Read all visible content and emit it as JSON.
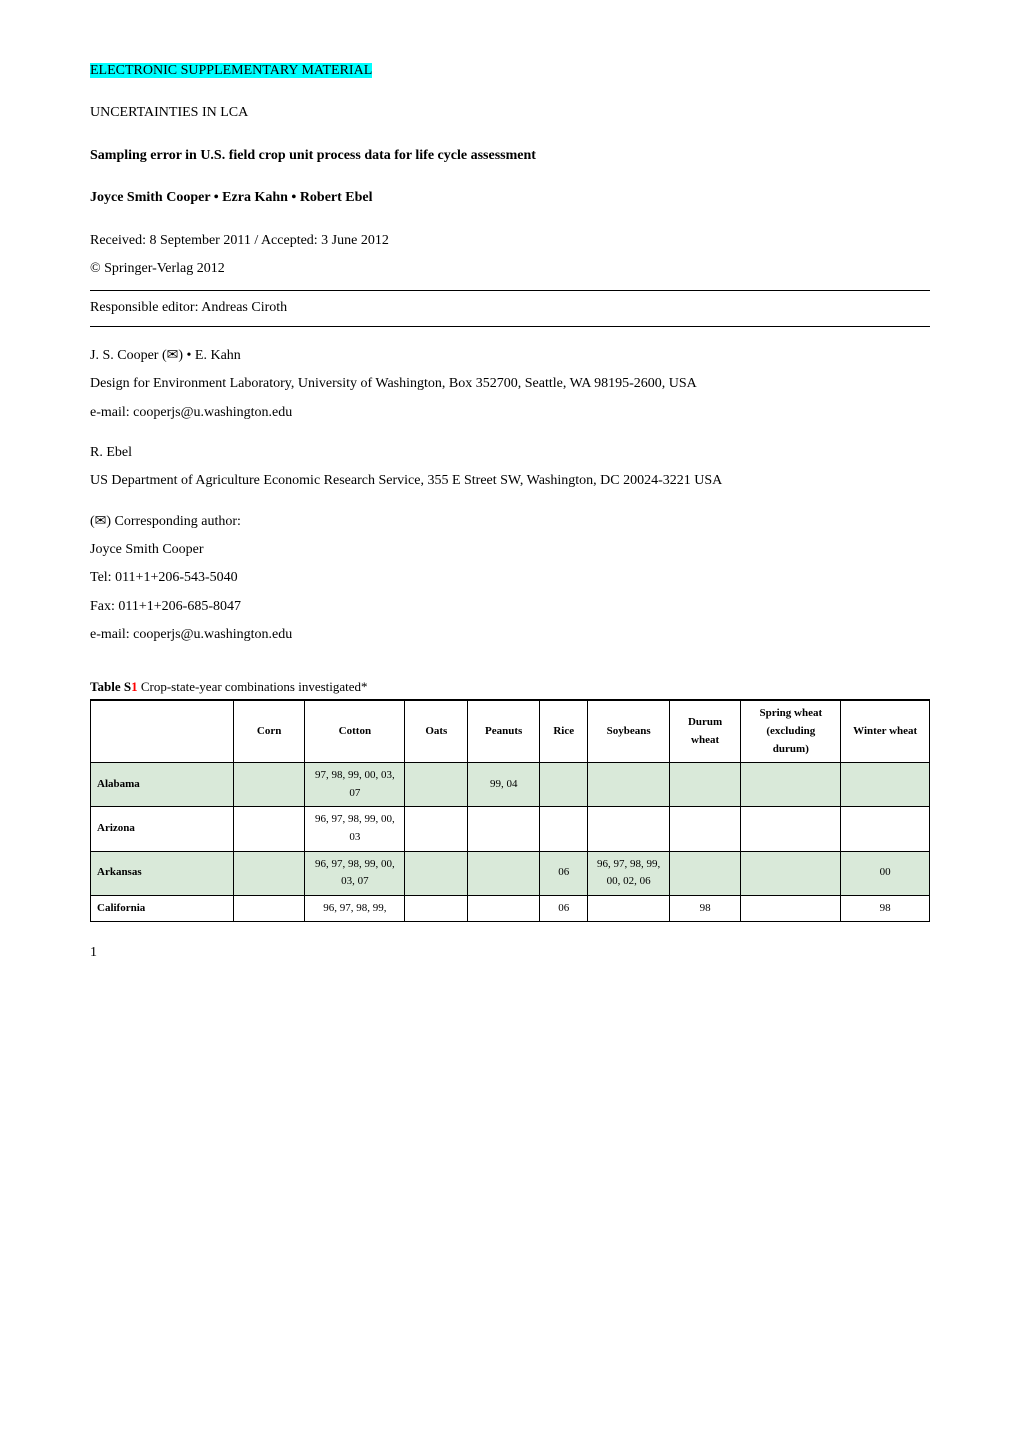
{
  "header": {
    "supplementary": "ELECTRONIC SUPPLEMENTARY MATERIAL",
    "series": "UNCERTAINTIES IN LCA",
    "title": "Sampling error in U.S. field crop unit process data for life cycle assessment",
    "authors": "Joyce Smith Cooper • Ezra Kahn • Robert Ebel",
    "received": "Received: 8 September 2011 / Accepted: 3 June 2012",
    "copyright": "© Springer-Verlag 2012",
    "editor": "Responsible editor: Andreas Ciroth"
  },
  "affiliations": {
    "a1_people": "J. S. Cooper (✉) • E. Kahn",
    "a1_addr": "Design for Environment Laboratory, University of Washington, Box 352700, Seattle, WA 98195-2600, USA",
    "a1_email": "e-mail: cooperjs@u.washington.edu",
    "a2_people": "R. Ebel",
    "a2_addr": "US Department of Agriculture Economic Research Service, 355 E Street SW, Washington, DC 20024-3221 USA",
    "corr_label": "(✉) Corresponding author:",
    "corr_name": "Joyce Smith Cooper",
    "corr_tel": "Tel: 011+1+206-543-5040",
    "corr_fax": "Fax: 011+1+206-685-8047",
    "corr_email": "e-mail: cooperjs@u.washington.edu"
  },
  "table": {
    "caption_prefix": "Table S",
    "caption_num": "1",
    "caption_rest": "  Crop-state-year combinations investigated*",
    "columns": [
      "",
      "Corn",
      "Cotton",
      "Oats",
      "Peanuts",
      "Rice",
      "Soybeans",
      "Durum wheat",
      "Spring wheat (excluding durum)",
      "Winter wheat"
    ],
    "rows": [
      {
        "state": "Alabama",
        "shaded": true,
        "cells": [
          "",
          "97, 98, 99, 00, 03, 07",
          "",
          "99, 04",
          "",
          "",
          "",
          "",
          ""
        ]
      },
      {
        "state": "Arizona",
        "shaded": false,
        "cells": [
          "",
          "96, 97, 98, 99, 00, 03",
          "",
          "",
          "",
          "",
          "",
          "",
          ""
        ]
      },
      {
        "state": "Arkansas",
        "shaded": true,
        "cells": [
          "",
          "96, 97, 98, 99, 00, 03, 07",
          "",
          "",
          "06",
          "96, 97, 98, 99, 00, 02, 06",
          "",
          "",
          "00"
        ]
      },
      {
        "state": "California",
        "shaded": false,
        "cells": [
          "",
          "96, 97, 98, 99,",
          "",
          "",
          "06",
          "",
          "98",
          "",
          "98"
        ]
      }
    ]
  },
  "page_number": "1",
  "colors": {
    "highlight_bg": "#00ffff",
    "shaded_row": "#d9e9d9",
    "red_num": "#ff0000"
  },
  "typography": {
    "body_font": "Times New Roman",
    "body_size_pt": 11,
    "title_bold": true
  }
}
